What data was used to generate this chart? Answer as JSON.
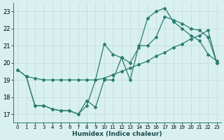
{
  "xlabel": "Humidex (Indice chaleur)",
  "bg_color": "#d8f0f0",
  "grid_color": "#c8dede",
  "line_color": "#2a7d6e",
  "xlim": [
    -0.5,
    23.5
  ],
  "ylim": [
    16.5,
    23.5
  ],
  "yticks": [
    17,
    18,
    19,
    20,
    21,
    22,
    23
  ],
  "xticks": [
    0,
    1,
    2,
    3,
    4,
    5,
    6,
    7,
    8,
    9,
    10,
    11,
    12,
    13,
    14,
    15,
    16,
    17,
    18,
    19,
    20,
    21,
    22,
    23
  ],
  "line1_x": [
    0,
    1,
    2,
    3,
    4,
    5,
    6,
    7,
    8,
    9,
    10,
    11,
    12,
    13,
    14,
    15,
    16,
    17,
    18,
    19,
    20,
    21,
    22,
    23
  ],
  "line1_y": [
    19.6,
    19.2,
    19.1,
    19.0,
    19.0,
    19.0,
    19.0,
    19.0,
    19.0,
    19.0,
    19.1,
    19.3,
    19.5,
    19.7,
    19.9,
    20.1,
    20.4,
    20.6,
    20.9,
    21.1,
    21.4,
    21.6,
    21.9,
    20.0
  ],
  "line2_x": [
    0,
    1,
    2,
    3,
    4,
    5,
    6,
    7,
    8,
    9,
    10,
    11,
    12,
    13,
    14,
    15,
    16,
    17,
    18,
    19,
    20,
    21,
    22,
    23
  ],
  "line2_y": [
    19.6,
    19.2,
    17.5,
    17.5,
    17.3,
    17.2,
    17.2,
    17.0,
    17.5,
    19.0,
    21.1,
    20.5,
    20.3,
    20.0,
    20.9,
    22.6,
    23.0,
    23.2,
    22.4,
    22.0,
    21.6,
    21.3,
    20.5,
    20.1
  ],
  "line3_x": [
    1,
    2,
    3,
    4,
    5,
    6,
    7,
    8,
    9,
    10,
    11,
    12,
    13,
    14,
    15,
    16,
    17,
    18,
    19,
    20,
    21,
    22,
    23
  ],
  "line3_y": [
    19.2,
    17.5,
    17.5,
    17.3,
    17.2,
    17.2,
    17.0,
    17.8,
    17.4,
    19.0,
    19.0,
    20.3,
    19.0,
    21.0,
    21.0,
    21.5,
    22.7,
    22.5,
    22.3,
    22.0,
    21.9,
    21.5,
    20.0
  ]
}
